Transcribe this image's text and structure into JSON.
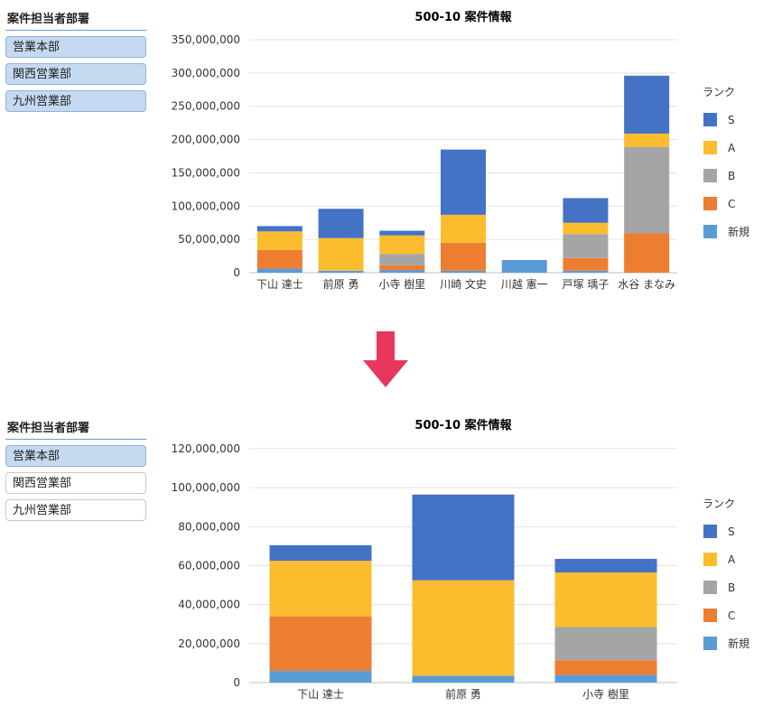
{
  "panels": [
    {
      "slicer": {
        "title": "案件担当者部署",
        "items": [
          {
            "label": "営業本部",
            "selected": true
          },
          {
            "label": "関西営業部",
            "selected": true
          },
          {
            "label": "九州営業部",
            "selected": true
          }
        ]
      },
      "chart": {
        "title": "500-10 案件情報",
        "legend_title": "ランク",
        "ymax": 350000000,
        "ystep": 50000000,
        "y_ticks": [
          "0",
          "50,000,000",
          "100,000,000",
          "150,000,000",
          "200,000,000",
          "250,000,000",
          "300,000,000",
          "350,000,000"
        ]
      }
    },
    {
      "slicer": {
        "title": "案件担当者部署",
        "items": [
          {
            "label": "営業本部",
            "selected": true
          },
          {
            "label": "関西営業部",
            "selected": false
          },
          {
            "label": "九州営業部",
            "selected": false
          }
        ]
      },
      "chart": {
        "title": "500-10 案件情報",
        "legend_title": "ランク",
        "ymax": 120000000,
        "ystep": 20000000,
        "y_ticks": [
          "0",
          "20,000,000",
          "40,000,000",
          "60,000,000",
          "80,000,000",
          "100,000,000",
          "120,000,000"
        ]
      }
    }
  ],
  "legend": [
    {
      "name": "S",
      "color": "#4472c4"
    },
    {
      "name": "A",
      "color": "#fbbd2e"
    },
    {
      "name": "B",
      "color": "#a5a5a5"
    },
    {
      "name": "C",
      "color": "#ed7d31"
    },
    {
      "name": "新規",
      "color": "#5b9bd5"
    }
  ],
  "arrow_color": "#e8365d",
  "chart_data": [
    {
      "type": "bar",
      "stacked": true,
      "title": "500-10 案件情報",
      "legend_title": "ランク",
      "categories": [
        "下山 達士",
        "前原 勇",
        "小寺 樹里",
        "川崎 文史",
        "川越 憲一",
        "戸塚 瑀子",
        "水谷 まなみ"
      ],
      "series": [
        {
          "name": "新規",
          "values": [
            6000000,
            3000000,
            4000000,
            3000000,
            19000000,
            3000000,
            0
          ]
        },
        {
          "name": "C",
          "values": [
            28000000,
            0,
            7000000,
            42000000,
            0,
            19000000,
            59000000
          ]
        },
        {
          "name": "B",
          "values": [
            0,
            0,
            17000000,
            0,
            0,
            36000000,
            130000000
          ]
        },
        {
          "name": "A",
          "values": [
            28000000,
            49000000,
            28000000,
            42000000,
            0,
            17000000,
            20000000
          ]
        },
        {
          "name": "S",
          "values": [
            8000000,
            44000000,
            7000000,
            98000000,
            0,
            37000000,
            87000000
          ]
        }
      ],
      "ylim": [
        0,
        350000000
      ],
      "grid": true,
      "legend_position": "right"
    },
    {
      "type": "bar",
      "stacked": true,
      "title": "500-10 案件情報",
      "legend_title": "ランク",
      "categories": [
        "下山 達士",
        "前原 勇",
        "小寺 樹里"
      ],
      "series": [
        {
          "name": "新規",
          "values": [
            6000000,
            3500000,
            4000000
          ]
        },
        {
          "name": "C",
          "values": [
            28000000,
            0,
            7500000
          ]
        },
        {
          "name": "B",
          "values": [
            0,
            0,
            17000000
          ]
        },
        {
          "name": "A",
          "values": [
            28500000,
            49000000,
            28000000
          ]
        },
        {
          "name": "S",
          "values": [
            8000000,
            44000000,
            7000000
          ]
        }
      ],
      "ylim": [
        0,
        120000000
      ],
      "grid": true,
      "legend_position": "right"
    }
  ]
}
